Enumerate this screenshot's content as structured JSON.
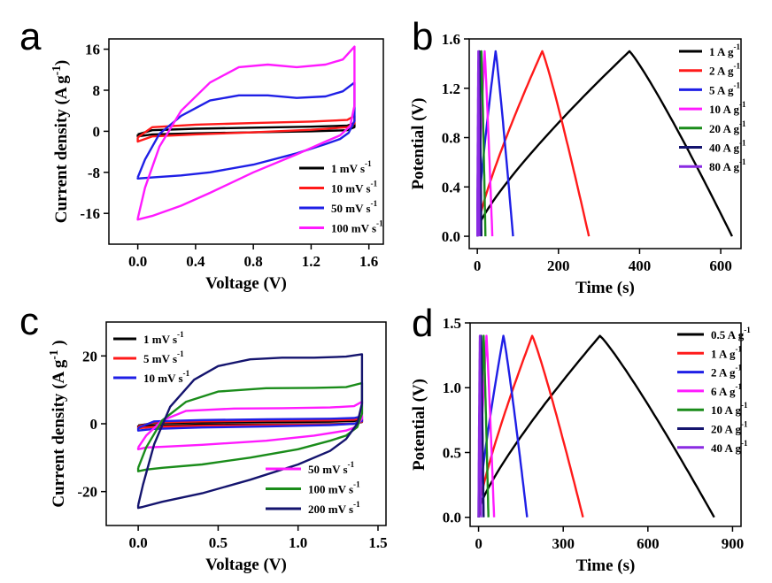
{
  "colors": {
    "black": "#000000",
    "red": "#ff1a1a",
    "blue": "#1f1fe6",
    "magenta": "#ff1aff",
    "green": "#1a8c1a",
    "navy": "#14146e",
    "violet": "#8a2be2"
  },
  "chart_data": [
    {
      "panel": "a",
      "type": "line",
      "xlabel": "Voltage (V)",
      "ylabel": "Current density (A g",
      "ylabel_sup": "-1",
      "ylabel_end": ")",
      "xlim": [
        -0.2,
        1.7
      ],
      "ylim": [
        -22,
        18
      ],
      "xticks": [
        0.0,
        0.4,
        0.8,
        1.2,
        1.6
      ],
      "xtick_labels": [
        "0.0",
        "0.4",
        "0.8",
        "1.2",
        "1.6"
      ],
      "yticks": [
        -16,
        -8,
        0,
        8,
        16
      ],
      "ytick_labels": [
        "-16",
        "-8",
        "0",
        "8",
        "16"
      ],
      "legend_position": "bottom-right",
      "series": [
        {
          "name": "1 mV s",
          "sup": "-1",
          "color": "black",
          "x": [
            0.0,
            0.1,
            0.4,
            0.8,
            1.2,
            1.45,
            1.5,
            1.5,
            1.45,
            1.2,
            0.8,
            0.4,
            0.1,
            0.0,
            0.0
          ],
          "y": [
            -0.6,
            0.2,
            0.5,
            0.7,
            0.9,
            1.1,
            1.6,
            0.8,
            0.2,
            0.0,
            -0.2,
            -0.4,
            -0.6,
            -1.0,
            -0.6
          ]
        },
        {
          "name": "10 mV s",
          "sup": "-1",
          "color": "red",
          "x": [
            0.0,
            0.1,
            0.4,
            0.8,
            1.2,
            1.45,
            1.5,
            1.5,
            1.45,
            1.2,
            0.8,
            0.4,
            0.1,
            0.0,
            0.0
          ],
          "y": [
            -1.2,
            0.8,
            1.3,
            1.6,
            1.9,
            2.2,
            3.0,
            1.5,
            0.8,
            0.3,
            -0.2,
            -0.6,
            -1.0,
            -2.0,
            -1.2
          ]
        },
        {
          "name": "50 mV s",
          "sup": "-1",
          "color": "blue",
          "x": [
            0.0,
            0.05,
            0.15,
            0.3,
            0.5,
            0.7,
            0.9,
            1.1,
            1.3,
            1.42,
            1.5,
            1.5,
            1.46,
            1.4,
            1.3,
            1.1,
            0.8,
            0.5,
            0.3,
            0.1,
            0.0,
            0.0
          ],
          "y": [
            -9.0,
            -5.5,
            -0.5,
            3.0,
            6.0,
            7.0,
            7.0,
            6.5,
            6.8,
            7.8,
            9.5,
            2.0,
            -0.3,
            -1.5,
            -2.5,
            -4.3,
            -6.5,
            -8.0,
            -8.6,
            -9.0,
            -9.2,
            -9.0
          ]
        },
        {
          "name": "100 mV s",
          "sup": "-1",
          "color": "magenta",
          "x": [
            0.0,
            0.05,
            0.15,
            0.3,
            0.5,
            0.7,
            0.9,
            1.1,
            1.3,
            1.42,
            1.5,
            1.5,
            1.47,
            1.4,
            1.3,
            1.1,
            0.8,
            0.5,
            0.3,
            0.1,
            0.0,
            0.0
          ],
          "y": [
            -17.0,
            -11.0,
            -3.0,
            4.0,
            9.5,
            12.5,
            13.0,
            12.5,
            13.0,
            14.0,
            16.5,
            5.0,
            1.0,
            -0.8,
            -2.0,
            -4.5,
            -8.0,
            -12.0,
            -14.5,
            -16.5,
            -17.2,
            -17.0
          ]
        }
      ]
    },
    {
      "panel": "b",
      "type": "line",
      "xlabel": "Time (s)",
      "ylabel": "Potential (V)",
      "xlim": [
        -20,
        650
      ],
      "ylim": [
        -0.1,
        1.6
      ],
      "xticks": [
        0,
        200,
        400,
        600
      ],
      "xtick_labels": [
        "0",
        "200",
        "400",
        "600"
      ],
      "yticks": [
        0.0,
        0.4,
        0.8,
        1.2,
        1.6
      ],
      "ytick_labels": [
        "0.0",
        "0.4",
        "0.8",
        "1.2",
        "1.6"
      ],
      "legend_position": "top-right",
      "series": [
        {
          "name": "1 A g",
          "sup": "-1",
          "color": "black",
          "charge_end": 375,
          "discharge_end": 628,
          "vmax": 1.5
        },
        {
          "name": "2 A g",
          "sup": "-1",
          "color": "red",
          "charge_end": 160,
          "discharge_end": 275,
          "vmax": 1.5
        },
        {
          "name": "5 A g",
          "sup": "-1",
          "color": "blue",
          "charge_end": 45,
          "discharge_end": 88,
          "vmax": 1.5
        },
        {
          "name": "10 A g",
          "sup": "-1",
          "color": "magenta",
          "charge_end": 18,
          "discharge_end": 37,
          "vmax": 1.5
        },
        {
          "name": "20 A g",
          "sup": "-1",
          "color": "green",
          "charge_end": 10,
          "discharge_end": 20,
          "vmax": 1.5
        },
        {
          "name": "40 A g",
          "sup": "-1",
          "color": "navy",
          "charge_end": 5,
          "discharge_end": 10,
          "vmax": 1.5
        },
        {
          "name": "80 A g",
          "sup": "-1",
          "color": "violet",
          "charge_end": 2.5,
          "discharge_end": 5,
          "vmax": 1.5
        }
      ]
    },
    {
      "panel": "c",
      "type": "line",
      "xlabel": "Voltage (V)",
      "ylabel": "Current density (A g",
      "ylabel_sup": "-1",
      "ylabel_end": " )",
      "xlim": [
        -0.2,
        1.55
      ],
      "ylim": [
        -30,
        30
      ],
      "xticks": [
        0.0,
        0.5,
        1.0,
        1.5
      ],
      "xtick_labels": [
        "0.0",
        "0.5",
        "1.0",
        "1.5"
      ],
      "yticks": [
        -20,
        0,
        20
      ],
      "ytick_labels": [
        "-20",
        "0",
        "20"
      ],
      "legend_position": "top-left and bottom-right",
      "series": [
        {
          "name": "1 mV s",
          "sup": "-1",
          "color": "black",
          "x": [
            0.0,
            0.1,
            0.4,
            0.8,
            1.2,
            1.35,
            1.4,
            1.4,
            1.35,
            1.2,
            0.8,
            0.4,
            0.1,
            0.0,
            0.0
          ],
          "y": [
            -0.5,
            0.2,
            0.4,
            0.5,
            0.6,
            0.8,
            1.2,
            0.5,
            0.0,
            -0.1,
            -0.2,
            -0.3,
            -0.5,
            -0.8,
            -0.5
          ]
        },
        {
          "name": "5 mV s",
          "sup": "-1",
          "color": "red",
          "x": [
            0.0,
            0.1,
            0.4,
            0.8,
            1.2,
            1.35,
            1.4,
            1.4,
            1.35,
            1.2,
            0.8,
            0.4,
            0.1,
            0.0,
            0.0
          ],
          "y": [
            -0.8,
            0.4,
            0.7,
            0.9,
            1.0,
            1.2,
            1.6,
            0.6,
            0.0,
            -0.2,
            -0.4,
            -0.6,
            -0.9,
            -1.3,
            -0.8
          ]
        },
        {
          "name": "10 mV s",
          "sup": "-1",
          "color": "blue",
          "x": [
            0.0,
            0.1,
            0.4,
            0.8,
            1.2,
            1.35,
            1.4,
            1.4,
            1.35,
            1.2,
            0.8,
            0.4,
            0.1,
            0.0,
            0.0
          ],
          "y": [
            -1.2,
            0.7,
            1.1,
            1.3,
            1.5,
            1.7,
            2.2,
            0.8,
            0.0,
            -0.4,
            -0.8,
            -1.1,
            -1.5,
            -2.0,
            -1.2
          ]
        },
        {
          "name": "50 mV s",
          "sup": "-1",
          "color": "magenta",
          "x": [
            0.0,
            0.05,
            0.15,
            0.3,
            0.6,
            0.9,
            1.2,
            1.35,
            1.4,
            1.4,
            1.36,
            1.3,
            1.1,
            0.8,
            0.4,
            0.15,
            0.05,
            0.0,
            0.0
          ],
          "y": [
            -7.0,
            -3.5,
            1.0,
            3.8,
            4.5,
            4.6,
            4.8,
            5.2,
            6.5,
            1.5,
            -1.0,
            -2.0,
            -3.5,
            -5.0,
            -6.2,
            -6.8,
            -7.0,
            -7.5,
            -7.0
          ]
        },
        {
          "name": "100 mV s",
          "sup": "-1",
          "color": "green",
          "x": [
            0.0,
            0.05,
            0.15,
            0.3,
            0.5,
            0.8,
            1.1,
            1.3,
            1.4,
            1.4,
            1.37,
            1.3,
            1.2,
            1.0,
            0.7,
            0.4,
            0.15,
            0.05,
            0.0,
            0.0
          ],
          "y": [
            -13.0,
            -7.0,
            1.0,
            6.5,
            9.5,
            10.5,
            10.6,
            10.8,
            12.0,
            3.0,
            -1.0,
            -3.5,
            -5.0,
            -7.5,
            -10.0,
            -12.0,
            -13.0,
            -13.5,
            -14.0,
            -13.0
          ]
        },
        {
          "name": "200 mV s",
          "sup": "-1",
          "color": "navy",
          "x": [
            0.0,
            0.03,
            0.1,
            0.2,
            0.35,
            0.5,
            0.7,
            0.9,
            1.1,
            1.3,
            1.4,
            1.4,
            1.37,
            1.3,
            1.2,
            1.0,
            0.7,
            0.4,
            0.15,
            0.03,
            0.0,
            0.0
          ],
          "y": [
            -24.0,
            -18.0,
            -6.0,
            5.0,
            13.0,
            17.0,
            19.0,
            19.5,
            19.5,
            19.8,
            20.5,
            6.0,
            0.0,
            -4.5,
            -8.0,
            -12.0,
            -16.5,
            -20.5,
            -23.0,
            -24.5,
            -24.8,
            -24.0
          ]
        }
      ]
    },
    {
      "panel": "d",
      "type": "line",
      "xlabel": "Time (s)",
      "ylabel": "Potential (V)",
      "xlim": [
        -30,
        930
      ],
      "ylim": [
        -0.07,
        1.5
      ],
      "xticks": [
        0,
        300,
        600,
        900
      ],
      "xtick_labels": [
        "0",
        "300",
        "600",
        "900"
      ],
      "yticks": [
        0.0,
        0.5,
        1.0,
        1.5
      ],
      "ytick_labels": [
        "0.0",
        "0.5",
        "1.0",
        "1.5"
      ],
      "legend_position": "top-right",
      "series": [
        {
          "name": "0.5 A g",
          "sup": "-1",
          "color": "black",
          "charge_end": 430,
          "discharge_end": 835,
          "vmax": 1.4
        },
        {
          "name": "1 A g",
          "sup": "-1",
          "color": "red",
          "charge_end": 190,
          "discharge_end": 370,
          "vmax": 1.4
        },
        {
          "name": "2 A g",
          "sup": "-1",
          "color": "blue",
          "charge_end": 88,
          "discharge_end": 172,
          "vmax": 1.4
        },
        {
          "name": "6 A g",
          "sup": "-1",
          "color": "magenta",
          "charge_end": 28,
          "discharge_end": 55,
          "vmax": 1.4
        },
        {
          "name": "10 A g",
          "sup": "-1",
          "color": "green",
          "charge_end": 18,
          "discharge_end": 35,
          "vmax": 1.4
        },
        {
          "name": "20 A g",
          "sup": "-1",
          "color": "navy",
          "charge_end": 9,
          "discharge_end": 18,
          "vmax": 1.4
        },
        {
          "name": "40 A g",
          "sup": "-1",
          "color": "violet",
          "charge_end": 4.5,
          "discharge_end": 9,
          "vmax": 1.4
        }
      ]
    }
  ]
}
